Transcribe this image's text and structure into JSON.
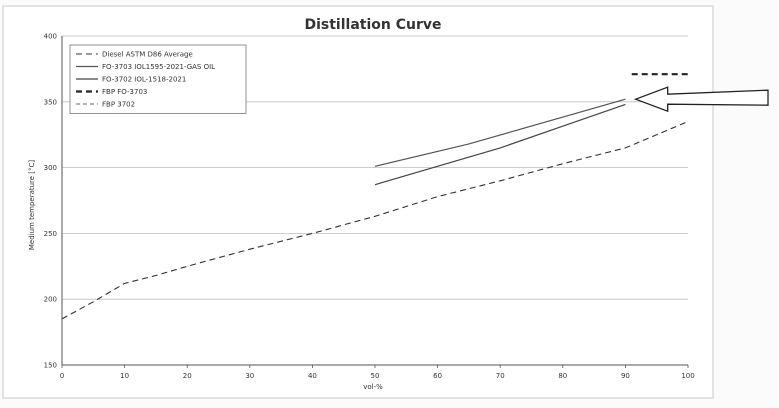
{
  "chart_data": {
    "type": "line",
    "title": "Distillation Curve",
    "xlabel": "vol-%",
    "ylabel": "Medium temperature [°C]",
    "xlim": [
      0,
      100
    ],
    "ylim": [
      150,
      400
    ],
    "x_ticks": [
      0,
      10,
      20,
      30,
      40,
      50,
      60,
      70,
      80,
      90,
      100
    ],
    "y_ticks": [
      150,
      200,
      250,
      300,
      350,
      400
    ],
    "grid": true,
    "legend_position": "top-left",
    "series": [
      {
        "name": "Diesel ASTM D86 Average",
        "style": "dashed",
        "color": "#333333",
        "points": [
          [
            0,
            185
          ],
          [
            5,
            198
          ],
          [
            10,
            212
          ],
          [
            15,
            218
          ],
          [
            20,
            225
          ],
          [
            30,
            238
          ],
          [
            40,
            250
          ],
          [
            50,
            263
          ],
          [
            60,
            278
          ],
          [
            70,
            290
          ],
          [
            80,
            303
          ],
          [
            90,
            315
          ],
          [
            100,
            335
          ]
        ]
      },
      {
        "name": "FO-3703 IOL1595-2021-GAS OIL",
        "style": "solid",
        "color": "#555555",
        "points": [
          [
            50,
            301
          ],
          [
            65,
            318
          ],
          [
            90,
            352
          ]
        ]
      },
      {
        "name": "FO-3702 IOL-1518-2021",
        "style": "solid",
        "color": "#444444",
        "points": [
          [
            50,
            287
          ],
          [
            70,
            315
          ],
          [
            90,
            348
          ]
        ]
      },
      {
        "name": "FBP FO-3703",
        "style": "dashed-bold",
        "color": "#222222",
        "points": [
          [
            91,
            371
          ],
          [
            100,
            371
          ]
        ]
      },
      {
        "name": "FBP 3702",
        "style": "dashed-thin",
        "color": "#666666",
        "points": []
      }
    ],
    "annotations": [
      {
        "type": "arrow",
        "x": 91,
        "y": 352
      }
    ]
  }
}
